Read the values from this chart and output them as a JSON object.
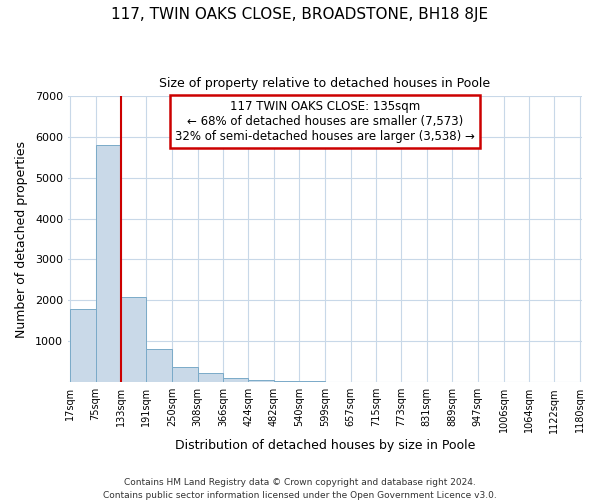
{
  "title": "117, TWIN OAKS CLOSE, BROADSTONE, BH18 8JE",
  "subtitle": "Size of property relative to detached houses in Poole",
  "xlabel": "Distribution of detached houses by size in Poole",
  "ylabel": "Number of detached properties",
  "bar_color": "#c9d9e8",
  "bar_edge_color": "#7aaac8",
  "vline_x": 133,
  "vline_color": "#cc0000",
  "bin_edges": [
    17,
    75,
    133,
    191,
    250,
    308,
    366,
    424,
    482,
    540,
    599,
    657,
    715,
    773,
    831,
    889,
    947,
    1006,
    1064,
    1122,
    1180
  ],
  "bin_labels": [
    "17sqm",
    "75sqm",
    "133sqm",
    "191sqm",
    "250sqm",
    "308sqm",
    "366sqm",
    "424sqm",
    "482sqm",
    "540sqm",
    "599sqm",
    "657sqm",
    "715sqm",
    "773sqm",
    "831sqm",
    "889sqm",
    "947sqm",
    "1006sqm",
    "1064sqm",
    "1122sqm",
    "1180sqm"
  ],
  "bar_heights": [
    1780,
    5790,
    2080,
    800,
    360,
    215,
    105,
    65,
    35,
    20,
    10,
    5,
    0,
    0,
    0,
    0,
    0,
    0,
    0,
    0
  ],
  "ylim": [
    0,
    7000
  ],
  "yticks": [
    0,
    1000,
    2000,
    3000,
    4000,
    5000,
    6000,
    7000
  ],
  "annotation_title": "117 TWIN OAKS CLOSE: 135sqm",
  "annotation_line1": "← 68% of detached houses are smaller (7,573)",
  "annotation_line2": "32% of semi-detached houses are larger (3,538) →",
  "annotation_box_color": "#ffffff",
  "annotation_box_edge": "#cc0000",
  "footer1": "Contains HM Land Registry data © Crown copyright and database right 2024.",
  "footer2": "Contains public sector information licensed under the Open Government Licence v3.0."
}
